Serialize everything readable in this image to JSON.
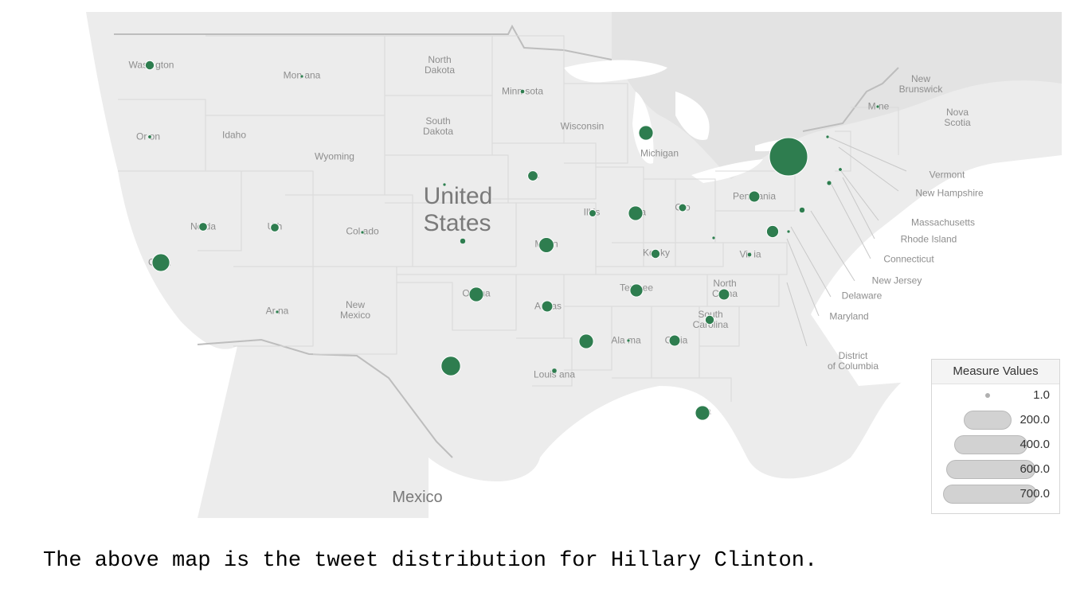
{
  "map": {
    "country_label_line1": "United",
    "country_label_line2": "States",
    "mexico_label": "Mexico",
    "bubble_color": "#2e7d4f",
    "places": [
      {
        "id": "washington",
        "text": "Wash gton"
      },
      {
        "id": "oregon",
        "text": "Or on"
      },
      {
        "id": "idaho",
        "text": "Idaho"
      },
      {
        "id": "montana",
        "text": "Mon ana"
      },
      {
        "id": "wyoming",
        "text": "Wyoming"
      },
      {
        "id": "nevada",
        "text": "Ne da"
      },
      {
        "id": "utah",
        "text": "U h"
      },
      {
        "id": "colorado",
        "text": "Col ado"
      },
      {
        "id": "california",
        "text": "Ca ia"
      },
      {
        "id": "arizona",
        "text": "Ar na"
      },
      {
        "id": "newmexico",
        "text": "New\nMexico"
      },
      {
        "id": "northdakota",
        "text": "North\nDakota"
      },
      {
        "id": "southdakota",
        "text": "South\nDakota"
      },
      {
        "id": "minnesota",
        "text": "Minn sota"
      },
      {
        "id": "wisconsin",
        "text": "Wisconsin"
      },
      {
        "id": "michigan",
        "text": "Michigan"
      },
      {
        "id": "iowa",
        "text": "I a"
      },
      {
        "id": "illinois",
        "text": "Ill is"
      },
      {
        "id": "indiana",
        "text": "In a"
      },
      {
        "id": "ohio",
        "text": "O o"
      },
      {
        "id": "pennsylvania",
        "text": "Penn ania"
      },
      {
        "id": "missouri",
        "text": "Mi un"
      },
      {
        "id": "kentucky",
        "text": "Ker ky"
      },
      {
        "id": "virginia",
        "text": "Vir ia"
      },
      {
        "id": "oklahoma",
        "text": "Ok ma"
      },
      {
        "id": "arkansas",
        "text": "Ark as"
      },
      {
        "id": "tennessee",
        "text": "Ten see"
      },
      {
        "id": "northcarolina",
        "text": "North\nCa na"
      },
      {
        "id": "southcarolina",
        "text": "South\nCarolina"
      },
      {
        "id": "alabama",
        "text": "Ala ma"
      },
      {
        "id": "georgia",
        "text": "Ge ia"
      },
      {
        "id": "texas",
        "text": "T"
      },
      {
        "id": "louisiana",
        "text": "Louis ana"
      },
      {
        "id": "florida",
        "text": "F a"
      },
      {
        "id": "maine",
        "text": "M ne"
      },
      {
        "id": "newbrunswick",
        "text": "New\nBrunswick"
      },
      {
        "id": "novascotia",
        "text": "Nova\nScotia"
      },
      {
        "id": "vermont",
        "text": "Vermont"
      },
      {
        "id": "newhampshire",
        "text": "New Hampshire"
      },
      {
        "id": "massachusetts",
        "text": "Massachusetts"
      },
      {
        "id": "rhodeisland",
        "text": "Rhode Island"
      },
      {
        "id": "connecticut",
        "text": "Connecticut"
      },
      {
        "id": "newjersey",
        "text": "New Jersey"
      },
      {
        "id": "delaware",
        "text": "Delaware"
      },
      {
        "id": "maryland",
        "text": "Maryland"
      },
      {
        "id": "dc",
        "text": "District\nof Columbia"
      }
    ],
    "bubbles": [
      {
        "state": "New York",
        "value": 700
      },
      {
        "state": "California",
        "value": 150
      },
      {
        "state": "Texas",
        "value": 180
      },
      {
        "state": "Missouri",
        "value": 110
      },
      {
        "state": "Oklahoma",
        "value": 100
      },
      {
        "state": "Michigan",
        "value": 100
      },
      {
        "state": "Indiana",
        "value": 100
      },
      {
        "state": "Alabama/Mississippi",
        "value": 100
      },
      {
        "state": "Florida",
        "value": 100
      },
      {
        "state": "Tennessee",
        "value": 80
      },
      {
        "state": "Pennsylvania",
        "value": 60
      },
      {
        "state": "Virginia/Maryland",
        "value": 70
      },
      {
        "state": "Arkansas",
        "value": 60
      },
      {
        "state": "Georgia",
        "value": 60
      },
      {
        "state": "North Carolina",
        "value": 60
      },
      {
        "state": "Iowa",
        "value": 50
      },
      {
        "state": "Kentucky",
        "value": 40
      },
      {
        "state": "Washington",
        "value": 40
      },
      {
        "state": "South Carolina",
        "value": 40
      },
      {
        "state": "Nevada",
        "value": 35
      },
      {
        "state": "Utah",
        "value": 35
      },
      {
        "state": "Ohio",
        "value": 30
      },
      {
        "state": "Illinois",
        "value": 25
      },
      {
        "state": "Kansas",
        "value": 15
      },
      {
        "state": "New Jersey",
        "value": 15
      },
      {
        "state": "Connecticut",
        "value": 10
      },
      {
        "state": "Louisiana",
        "value": 12
      },
      {
        "state": "Minnesota",
        "value": 8
      },
      {
        "state": "Virginia",
        "value": 8
      },
      {
        "state": "Oregon",
        "value": 6
      },
      {
        "state": "Massachusetts",
        "value": 6
      },
      {
        "state": "Nebraska",
        "value": 4
      },
      {
        "state": "Vermont",
        "value": 3
      },
      {
        "state": "Alabama",
        "value": 5
      },
      {
        "state": "West Virginia",
        "value": 4
      },
      {
        "state": "Delaware",
        "value": 2
      },
      {
        "state": "Montana",
        "value": 2
      },
      {
        "state": "Colorado",
        "value": 2
      },
      {
        "state": "Arizona",
        "value": 2
      },
      {
        "state": "Maine",
        "value": 2
      }
    ]
  },
  "legend": {
    "title": "Measure Values",
    "items": [
      {
        "label": "1.0",
        "value": 1
      },
      {
        "label": "200.0",
        "value": 200
      },
      {
        "label": "400.0",
        "value": 400
      },
      {
        "label": "600.0",
        "value": 600
      },
      {
        "label": "700.0",
        "value": 700
      }
    ]
  },
  "caption": "The above map is the tweet distribution for Hillary Clinton."
}
